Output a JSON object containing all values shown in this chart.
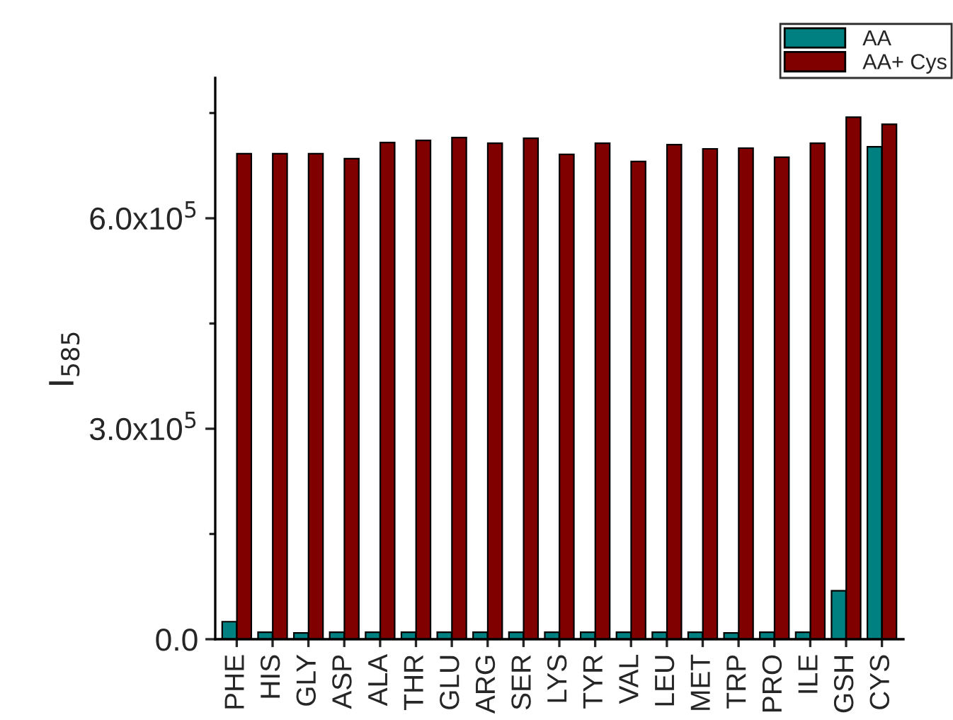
{
  "chart_data": {
    "type": "bar",
    "ylabel": "I$_{585}$",
    "categories": [
      "PHE",
      "HIS",
      "GLY",
      "ASP",
      "ALA",
      "THR",
      "GLU",
      "ARG",
      "SER",
      "LYS",
      "TYR",
      "VAL",
      "LEU",
      "MET",
      "TRP",
      "PRO",
      "ILE",
      "GSH",
      "CYS"
    ],
    "series": [
      {
        "name": "AA",
        "color": "#008080",
        "values": [
          25000,
          10000,
          9000,
          10000,
          10000,
          10000,
          10000,
          10000,
          10000,
          10000,
          10000,
          10000,
          10000,
          10000,
          9000,
          10000,
          10000,
          69000,
          702000
        ]
      },
      {
        "name": "AA+ Cys",
        "color": "#800000",
        "values": [
          692000,
          692000,
          692000,
          685000,
          708000,
          711000,
          715000,
          707000,
          714000,
          691000,
          707000,
          681000,
          705000,
          699000,
          700000,
          687000,
          707000,
          744000,
          734000
        ]
      }
    ],
    "ylim": [
      0,
      800000
    ],
    "yticks": [
      {
        "value": 0,
        "label": "0.0"
      },
      {
        "value": 150000,
        "label": null
      },
      {
        "value": 300000,
        "label": "3.0x10$^{5}$"
      },
      {
        "value": 450000,
        "label": null
      },
      {
        "value": 600000,
        "label": "6.0x10$^{5}$"
      },
      {
        "value": 750000,
        "label": null
      }
    ],
    "grid": false,
    "legend": "top right"
  }
}
